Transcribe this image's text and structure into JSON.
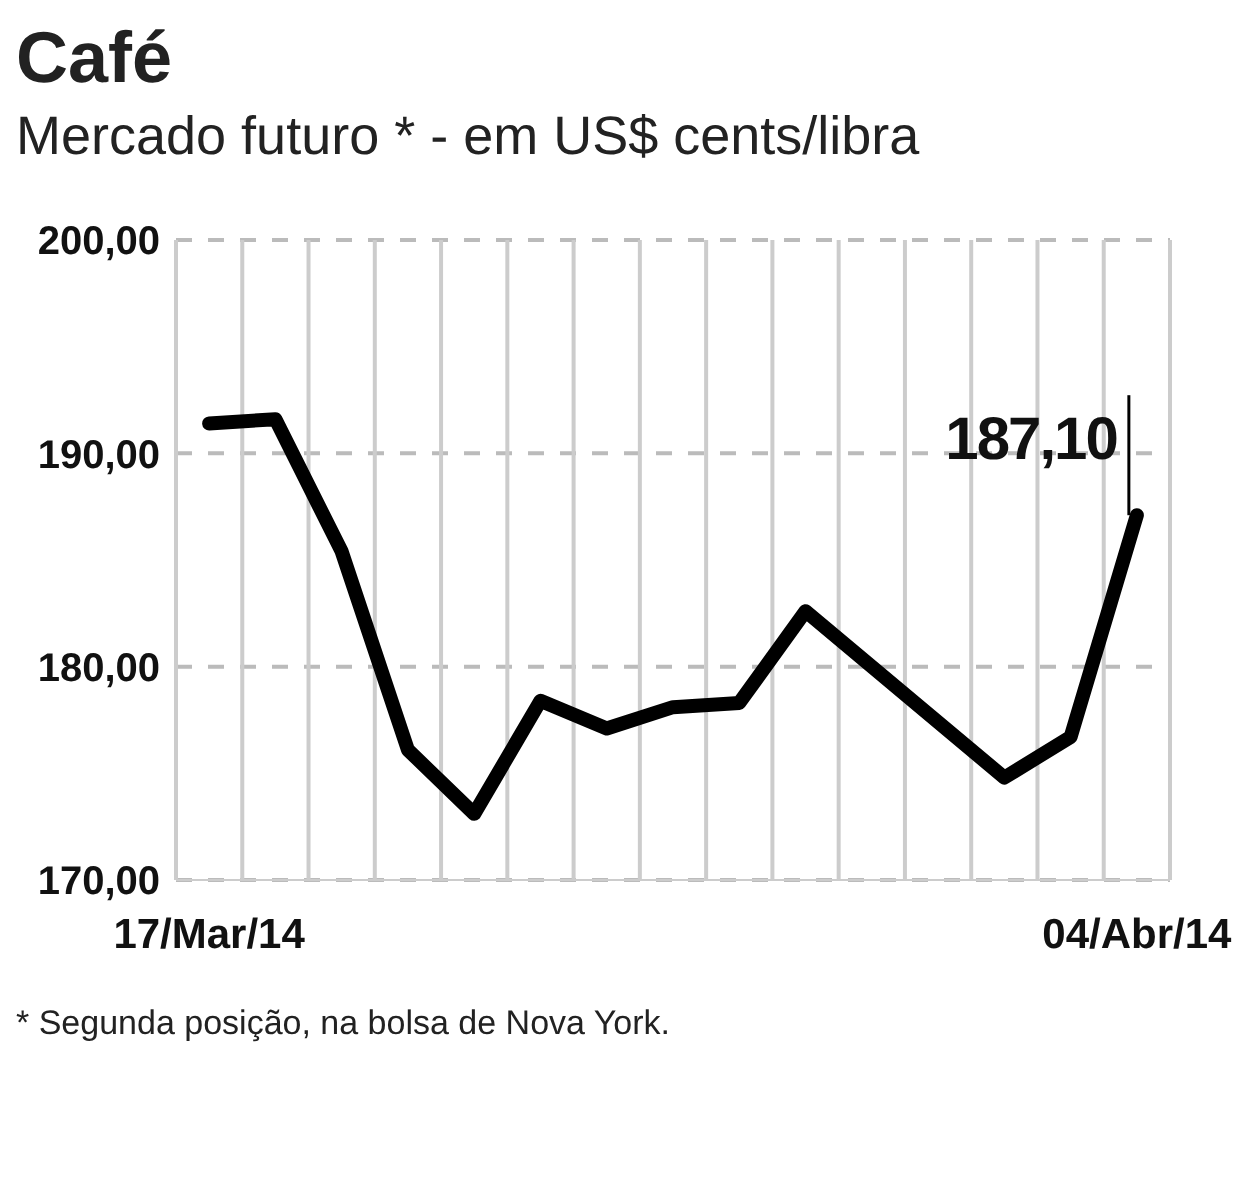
{
  "chart_data": {
    "type": "line",
    "title": "Café",
    "subtitle": "Mercado futuro * - em US$ cents/libra",
    "categories": [
      "17/Mar/14",
      null,
      null,
      null,
      null,
      null,
      null,
      null,
      null,
      null,
      null,
      null,
      null,
      null,
      "04/Abr/14"
    ],
    "series": [
      {
        "color": "#000000",
        "values": [
          191.4,
          191.6,
          185.4,
          176.1,
          173.1,
          178.4,
          177.1,
          178.1,
          178.3,
          182.6,
          180.0,
          177.4,
          174.8,
          176.7,
          187.1
        ]
      }
    ],
    "ylim": [
      170,
      200
    ],
    "yticks": [
      {
        "value": 170,
        "label": "170,00"
      },
      {
        "value": 180,
        "label": "180,00"
      },
      {
        "value": 190,
        "label": "190,00"
      },
      {
        "value": 200,
        "label": "200,00"
      }
    ],
    "grid": true,
    "marker": "none",
    "line_style": "solid",
    "annotations": [
      {
        "text": "187,10",
        "x": "04/Abr/14",
        "y": 187.1
      },
      "* Segunda posição, na bolsa de Nova York."
    ]
  }
}
